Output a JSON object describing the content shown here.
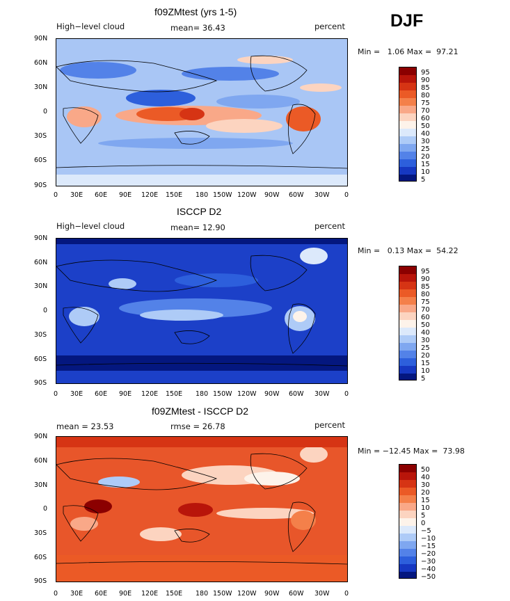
{
  "season": "DJF",
  "panels": [
    {
      "title": "f09ZMtest (yrs 1-5)",
      "field": "High−level cloud",
      "stat": "mean=  36.43",
      "units": "percent",
      "minmax": "Min =   1.06 Max =  97.21",
      "legend": [
        "95",
        "90",
        "85",
        "80",
        "75",
        "70",
        "60",
        "50",
        "40",
        "30",
        "25",
        "20",
        "15",
        "10",
        "5"
      ]
    },
    {
      "title": "ISCCP D2",
      "field": "High−level cloud",
      "stat": "mean=  12.90",
      "units": "percent",
      "minmax": "Min =   0.13 Max =  54.22",
      "legend": [
        "95",
        "90",
        "85",
        "80",
        "75",
        "70",
        "60",
        "50",
        "40",
        "30",
        "25",
        "20",
        "15",
        "10",
        "5"
      ]
    },
    {
      "title": "f09ZMtest - ISCCP D2",
      "field": "mean =  23.53",
      "stat": "rmse =  26.78",
      "units": "percent",
      "minmax": "Min = −12.45 Max =  73.98",
      "legend": [
        "50",
        "40",
        "30",
        "20",
        "15",
        "10",
        "5",
        "0",
        "−5",
        "−10",
        "−15",
        "−20",
        "−30",
        "−40",
        "−50"
      ]
    }
  ],
  "lat_ticks": [
    "90N",
    "60N",
    "30N",
    "0",
    "30S",
    "60S",
    "90S"
  ],
  "lon_ticks": [
    "0",
    "30E",
    "60E",
    "90E",
    "120E",
    "150E",
    "180",
    "150W",
    "120W",
    "90W",
    "60W",
    "30W",
    "0"
  ],
  "colors": {
    "abs_scale": [
      "#8b0000",
      "#b8150a",
      "#d63414",
      "#eb5a26",
      "#f4804a",
      "#f9a888",
      "#fcd4c0",
      "#fdf3ea",
      "#dce9fb",
      "#aecbf7",
      "#7fa7f0",
      "#5382e8",
      "#2d5fdc",
      "#1638c2",
      "#04177f"
    ],
    "diff_scale": [
      "#8b0000",
      "#b8150a",
      "#d63414",
      "#eb5a26",
      "#f4804a",
      "#f9a888",
      "#fcd4c0",
      "#fdf3ea",
      "#dce9fb",
      "#aecbf7",
      "#7fa7f0",
      "#5382e8",
      "#2d5fdc",
      "#1638c2",
      "#04177f"
    ],
    "panel_bg": [
      "#a9c6f5",
      "#1c40c8",
      "#e8562a"
    ]
  }
}
